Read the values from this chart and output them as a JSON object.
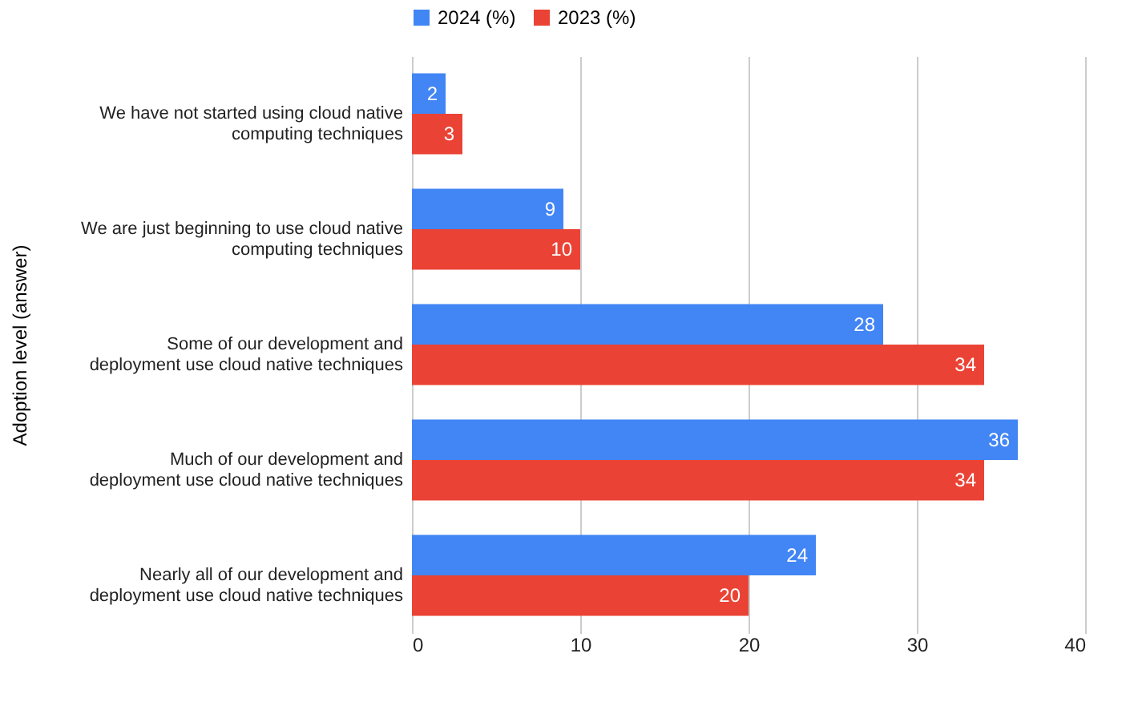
{
  "chart_data": {
    "type": "bar",
    "orientation": "horizontal",
    "ylabel": "Adoption level (answer)",
    "categories": [
      "We have not started using cloud native\ncomputing techniques",
      "We are just beginning to use cloud native\ncomputing techniques",
      "Some of our development and\ndeployment use cloud native techniques",
      "Much of our development and\ndeployment use cloud native techniques",
      "Nearly all of our development and\ndeployment use cloud native techniques"
    ],
    "series": [
      {
        "name": "2024 (%)",
        "color": "#4285f4",
        "values": [
          2,
          9,
          28,
          36,
          24
        ]
      },
      {
        "name": "2023 (%)",
        "color": "#ea4335",
        "values": [
          3,
          10,
          34,
          34,
          20
        ]
      }
    ],
    "xlim": [
      0,
      40
    ],
    "xticks": [
      0,
      10,
      20,
      30,
      40
    ],
    "grid": "x",
    "legend": "top",
    "data_labels": true
  }
}
